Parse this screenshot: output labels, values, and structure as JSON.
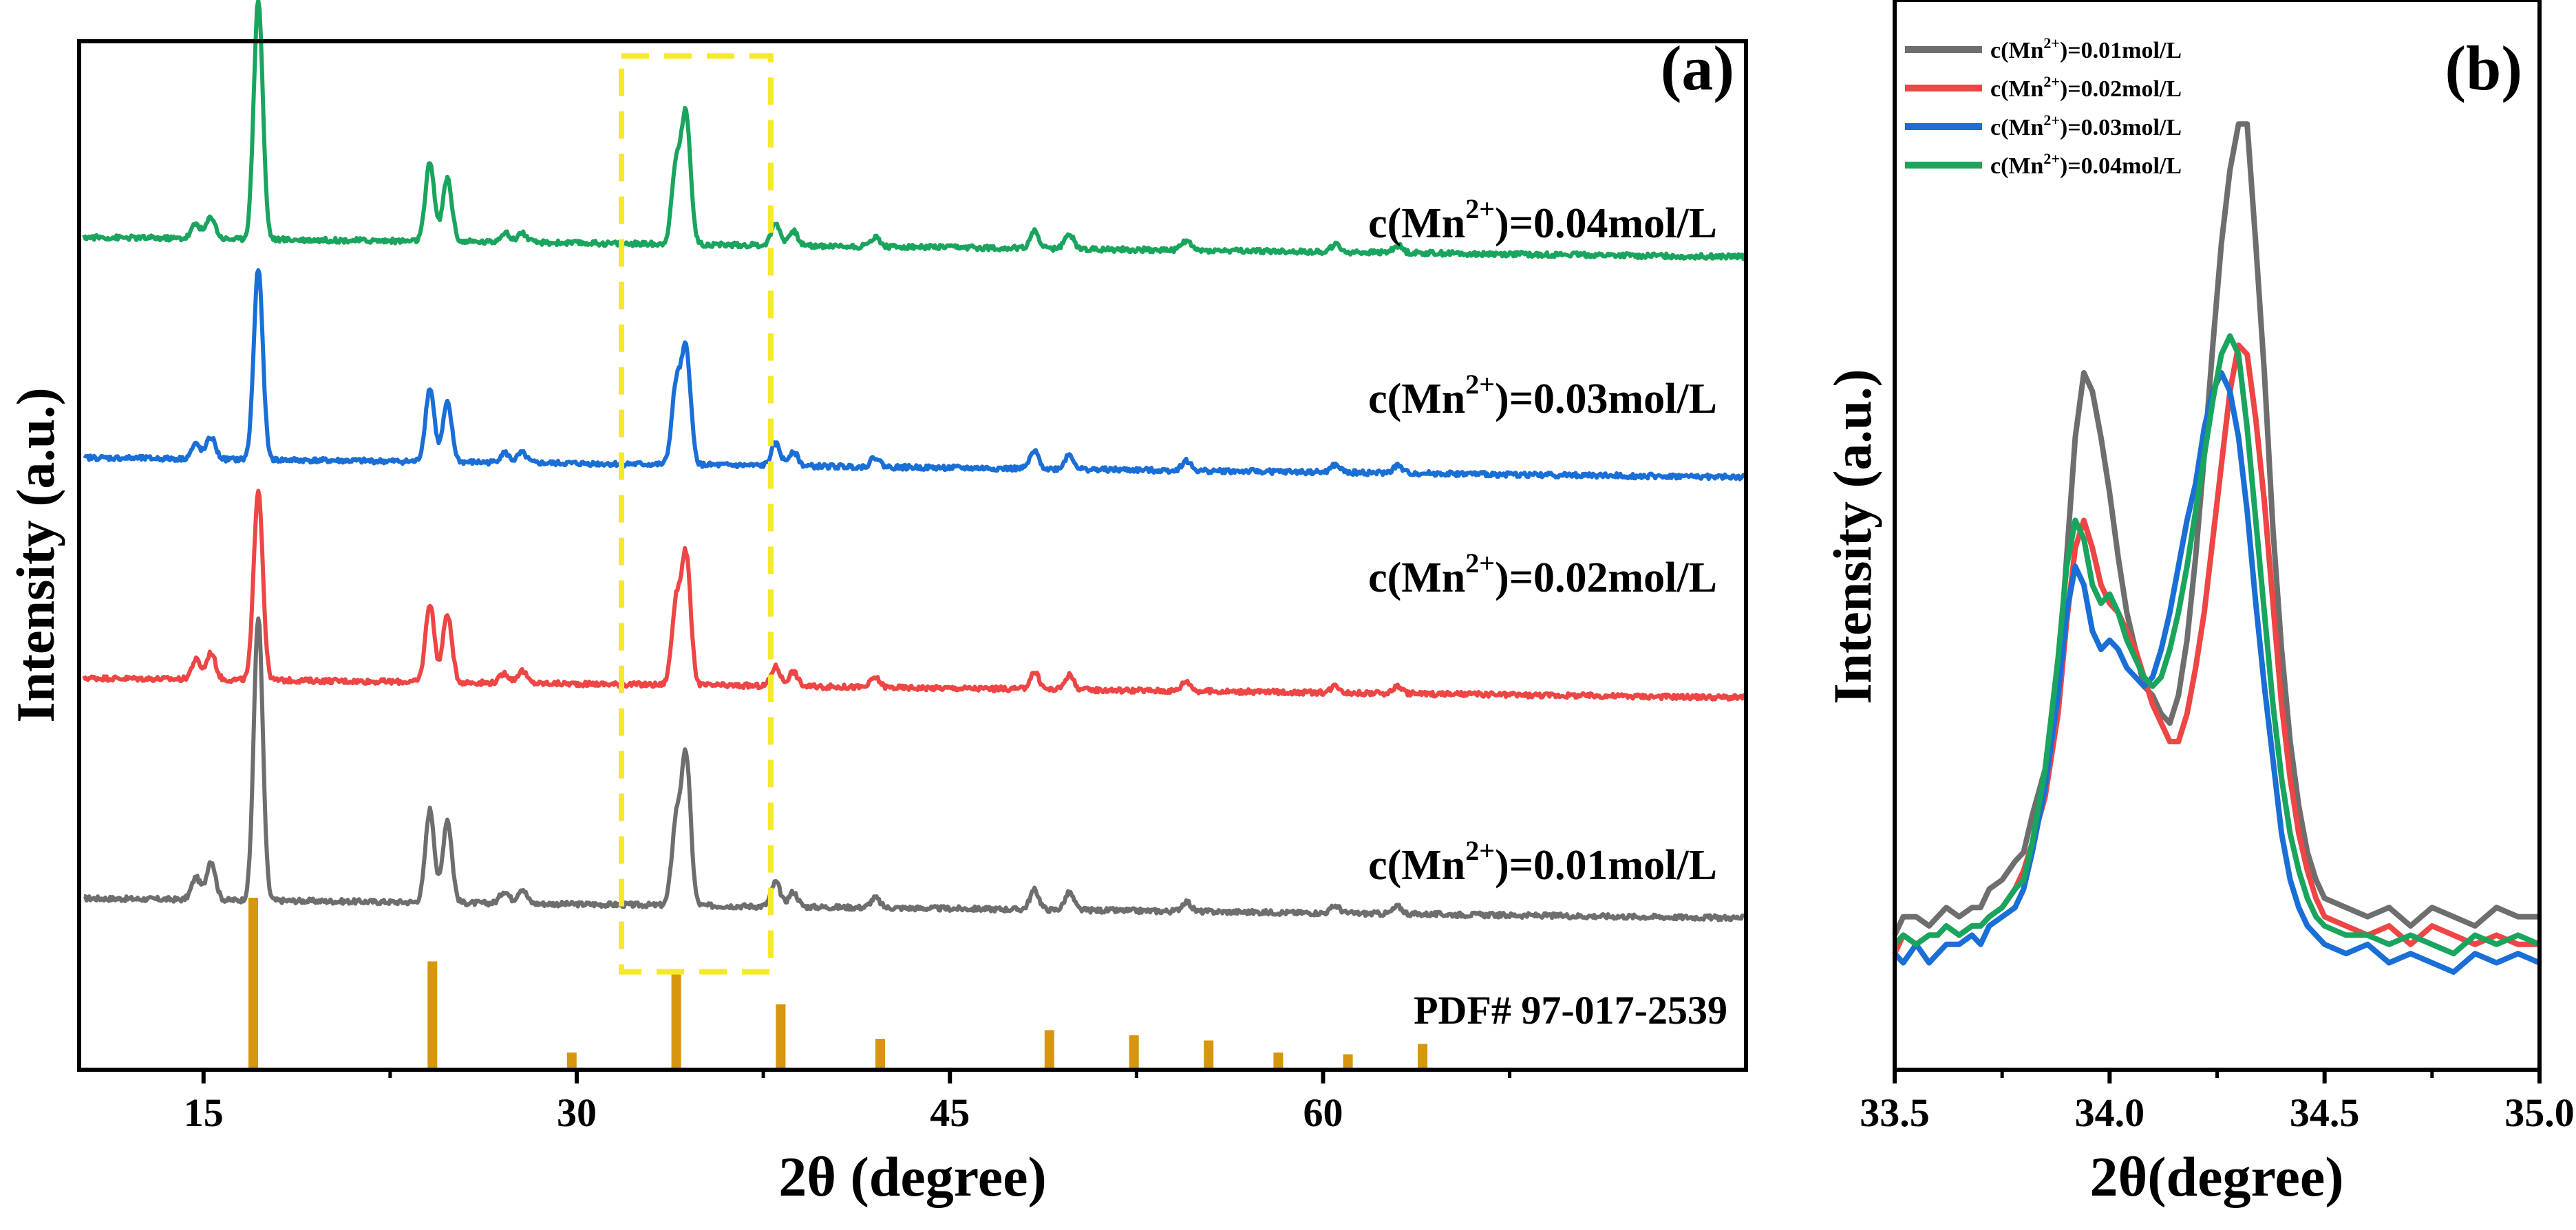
{
  "figure": {
    "panel_a_label": "(a)",
    "panel_b_label": "(b)"
  },
  "chart_data": [
    {
      "type": "line",
      "panel": "(a)",
      "xlabel": "2θ (degree)",
      "ylabel": "Intensity (a.u.)",
      "xlim": [
        10,
        77
      ],
      "ylim": [
        0,
        21
      ],
      "xticks": [
        15,
        30,
        45,
        60
      ],
      "x_tick_labels": [
        "15",
        "30",
        "45",
        "60"
      ],
      "minor_xticks": [
        22.5,
        37.5,
        52.5,
        67.5
      ],
      "colors": {
        "0.01": "#6e6e6e",
        "0.02": "#ee4545",
        "0.03": "#1a6fd6",
        "0.04": "#1aa55e",
        "pdf": "#d6960f",
        "highlight_box": "#f5e92a"
      },
      "baseline": {
        "start": 10,
        "slope": 0.006,
        "noise_amplitude": 0.1
      },
      "peak_width": 0.18,
      "series": [
        {
          "name": "c(Mn²⁺)=0.01mol/L",
          "color": "#6e6e6e",
          "offset": 3.5,
          "peaks": [
            [
              14.7,
              0.45
            ],
            [
              15.3,
              0.8
            ],
            [
              17.2,
              5.8
            ],
            [
              24.1,
              1.9
            ],
            [
              24.8,
              1.7
            ],
            [
              27.1,
              0.25
            ],
            [
              27.8,
              0.3
            ],
            [
              34.0,
              1.7
            ],
            [
              34.4,
              3.0
            ],
            [
              38.0,
              0.5
            ],
            [
              38.7,
              0.3
            ],
            [
              42.0,
              0.2
            ],
            [
              48.4,
              0.4
            ],
            [
              49.8,
              0.35
            ],
            [
              54.5,
              0.2
            ],
            [
              60.5,
              0.15
            ],
            [
              63.0,
              0.15
            ]
          ]
        },
        {
          "name": "c(Mn²⁺)=0.02mol/L",
          "color": "#ee4545",
          "offset": 8.0,
          "peaks": [
            [
              14.7,
              0.4
            ],
            [
              15.3,
              0.55
            ],
            [
              17.2,
              3.9
            ],
            [
              24.1,
              1.6
            ],
            [
              24.8,
              1.4
            ],
            [
              27.1,
              0.2
            ],
            [
              27.8,
              0.25
            ],
            [
              34.0,
              1.65
            ],
            [
              34.4,
              2.6
            ],
            [
              38.0,
              0.4
            ],
            [
              38.7,
              0.3
            ],
            [
              42.0,
              0.2
            ],
            [
              48.4,
              0.35
            ],
            [
              49.8,
              0.3
            ],
            [
              54.5,
              0.2
            ],
            [
              60.5,
              0.15
            ],
            [
              63.0,
              0.15
            ]
          ]
        },
        {
          "name": "c(Mn²⁺)=0.03mol/L",
          "color": "#1a6fd6",
          "offset": 12.5,
          "peaks": [
            [
              14.7,
              0.3
            ],
            [
              15.3,
              0.45
            ],
            [
              17.2,
              3.9
            ],
            [
              24.1,
              1.5
            ],
            [
              24.8,
              1.2
            ],
            [
              27.1,
              0.2
            ],
            [
              27.8,
              0.2
            ],
            [
              34.0,
              1.6
            ],
            [
              34.4,
              2.3
            ],
            [
              38.0,
              0.45
            ],
            [
              38.7,
              0.3
            ],
            [
              42.0,
              0.2
            ],
            [
              48.4,
              0.35
            ],
            [
              49.8,
              0.3
            ],
            [
              54.5,
              0.2
            ],
            [
              60.5,
              0.15
            ],
            [
              63.0,
              0.15
            ]
          ]
        },
        {
          "name": "c(Mn²⁺)=0.04mol/L",
          "color": "#1aa55e",
          "offset": 17.0,
          "peaks": [
            [
              14.7,
              0.3
            ],
            [
              15.3,
              0.45
            ],
            [
              17.2,
              4.9
            ],
            [
              24.1,
              1.6
            ],
            [
              24.8,
              1.3
            ],
            [
              27.1,
              0.2
            ],
            [
              27.8,
              0.2
            ],
            [
              34.0,
              1.6
            ],
            [
              34.4,
              2.6
            ],
            [
              38.0,
              0.45
            ],
            [
              38.7,
              0.3
            ],
            [
              42.0,
              0.2
            ],
            [
              48.4,
              0.35
            ],
            [
              49.8,
              0.3
            ],
            [
              54.5,
              0.2
            ],
            [
              60.5,
              0.15
            ],
            [
              63.0,
              0.15
            ]
          ]
        }
      ],
      "labels": [
        {
          "prefix": "c(Mn",
          "sup": "2+",
          "suffix": ")=0.01mol/L"
        },
        {
          "prefix": "c(Mn",
          "sup": "2+",
          "suffix": ")=0.02mol/L"
        },
        {
          "prefix": "c(Mn",
          "sup": "2+",
          "suffix": ")=0.03mol/L"
        },
        {
          "prefix": "c(Mn",
          "sup": "2+",
          "suffix": ")=0.04mol/L"
        }
      ],
      "reference": {
        "name": "PDF# 97-017-2539",
        "x": [
          17.0,
          24.2,
          29.8,
          34.0,
          38.2,
          42.2,
          49.0,
          52.4,
          55.4,
          58.2,
          61.0,
          64.0
        ],
        "heights": [
          100,
          63,
          10,
          57,
          38,
          18,
          23,
          20,
          17,
          10,
          9,
          15
        ]
      },
      "highlight_box": {
        "x_range": [
          31.8,
          37.8
        ],
        "y_range": [
          2.0,
          20.7
        ]
      }
    },
    {
      "type": "line",
      "panel": "(b)",
      "xlabel": "2θ(degree)",
      "ylabel": "Intensity (a.u.)",
      "xlim": [
        33.5,
        35.0
      ],
      "ylim": [
        0,
        100
      ],
      "xticks": [
        33.5,
        34.0,
        34.5,
        35.0
      ],
      "x_tick_labels": [
        "33.5",
        "34.0",
        "34.5",
        "35.0"
      ],
      "minor_xticks": [
        33.75,
        34.25,
        34.75
      ],
      "legend_position": "top-left",
      "series": [
        {
          "name": "c(Mn²⁺)=0.01mol/L",
          "color": "#6e6e6e",
          "x": [
            33.5,
            33.52,
            33.55,
            33.58,
            33.6,
            33.62,
            33.65,
            33.68,
            33.7,
            33.72,
            33.75,
            33.78,
            33.8,
            33.82,
            33.85,
            33.88,
            33.9,
            33.92,
            33.94,
            33.96,
            33.98,
            34.0,
            34.02,
            34.04,
            34.06,
            34.08,
            34.1,
            34.12,
            34.14,
            34.16,
            34.18,
            34.2,
            34.22,
            34.24,
            34.26,
            34.28,
            34.3,
            34.32,
            34.34,
            34.36,
            34.38,
            34.4,
            34.42,
            34.44,
            34.46,
            34.48,
            34.5,
            34.55,
            34.6,
            34.65,
            34.7,
            34.75,
            34.8,
            34.85,
            34.9,
            34.95,
            35.0
          ],
          "y": [
            9,
            11,
            11,
            10,
            11,
            12,
            11,
            12,
            12,
            14,
            15,
            17,
            18,
            22,
            27,
            37,
            50,
            63,
            70,
            68,
            63,
            57,
            50,
            44,
            40,
            36,
            35,
            33,
            32,
            35,
            41,
            50,
            61,
            73,
            84,
            92,
            97,
            97,
            84,
            70,
            53,
            40,
            30,
            23,
            18,
            15,
            13,
            12,
            11,
            12,
            10,
            12,
            11,
            10,
            12,
            11,
            11
          ]
        },
        {
          "name": "c(Mn²⁺)=0.02mol/L",
          "color": "#ee4545",
          "x": [
            33.5,
            33.52,
            33.55,
            33.58,
            33.6,
            33.62,
            33.65,
            33.68,
            33.7,
            33.72,
            33.75,
            33.78,
            33.8,
            33.82,
            33.85,
            33.88,
            33.9,
            33.92,
            33.94,
            33.96,
            33.98,
            34.0,
            34.02,
            34.04,
            34.06,
            34.08,
            34.1,
            34.12,
            34.14,
            34.16,
            34.18,
            34.2,
            34.22,
            34.24,
            34.26,
            34.28,
            34.3,
            34.32,
            34.34,
            34.36,
            34.38,
            34.4,
            34.42,
            34.44,
            34.46,
            34.48,
            34.5,
            34.55,
            34.6,
            34.65,
            34.7,
            34.75,
            34.8,
            34.85,
            34.9,
            34.95,
            35.0
          ],
          "y": [
            7,
            9,
            8,
            9,
            9,
            10,
            9,
            10,
            10,
            11,
            12,
            14,
            16,
            19,
            24,
            33,
            43,
            51,
            54,
            51,
            47,
            45,
            44,
            42,
            40,
            37,
            34,
            32,
            30,
            30,
            33,
            38,
            44,
            52,
            60,
            68,
            73,
            72,
            65,
            56,
            45,
            34,
            26,
            20,
            16,
            13,
            11,
            10,
            9,
            10,
            8,
            10,
            9,
            8,
            9,
            8,
            8
          ]
        },
        {
          "name": "c(Mn²⁺)=0.03mol/L",
          "color": "#1a6fd6",
          "x": [
            33.5,
            33.52,
            33.55,
            33.58,
            33.6,
            33.62,
            33.65,
            33.68,
            33.7,
            33.72,
            33.75,
            33.78,
            33.8,
            33.82,
            33.85,
            33.88,
            33.9,
            33.92,
            33.94,
            33.96,
            33.98,
            34.0,
            34.02,
            34.04,
            34.06,
            34.08,
            34.1,
            34.12,
            34.14,
            34.16,
            34.18,
            34.2,
            34.22,
            34.24,
            34.26,
            34.28,
            34.3,
            34.32,
            34.34,
            34.36,
            34.38,
            34.4,
            34.42,
            34.44,
            34.46,
            34.48,
            34.5,
            34.55,
            34.6,
            34.65,
            34.7,
            34.75,
            34.8,
            34.85,
            34.9,
            34.95,
            35.0
          ],
          "y": [
            7,
            6,
            8,
            6,
            7,
            8,
            8,
            9,
            8,
            10,
            11,
            12,
            14,
            18,
            25,
            35,
            44,
            49,
            47,
            42,
            40,
            41,
            40,
            38,
            37,
            36,
            37,
            40,
            44,
            49,
            54,
            58,
            64,
            68,
            70,
            68,
            63,
            55,
            45,
            36,
            28,
            20,
            15,
            12,
            10,
            9,
            8,
            7,
            8,
            6,
            7,
            6,
            5,
            7,
            6,
            7,
            6
          ]
        },
        {
          "name": "c(Mn²⁺)=0.04mol/L",
          "color": "#1aa55e",
          "x": [
            33.5,
            33.52,
            33.55,
            33.58,
            33.6,
            33.62,
            33.65,
            33.68,
            33.7,
            33.72,
            33.75,
            33.78,
            33.8,
            33.82,
            33.85,
            33.88,
            33.9,
            33.92,
            33.94,
            33.96,
            33.98,
            34.0,
            34.02,
            34.04,
            34.06,
            34.08,
            34.1,
            34.12,
            34.14,
            34.16,
            34.18,
            34.2,
            34.22,
            34.24,
            34.26,
            34.28,
            34.3,
            34.32,
            34.34,
            34.36,
            34.38,
            34.4,
            34.42,
            34.44,
            34.46,
            34.48,
            34.5,
            34.55,
            34.6,
            34.65,
            34.7,
            34.75,
            34.8,
            34.85,
            34.9,
            34.95,
            35.0
          ],
          "y": [
            8,
            9,
            8,
            9,
            9,
            10,
            9,
            10,
            10,
            11,
            12,
            14,
            15,
            19,
            27,
            39,
            49,
            54,
            52,
            47,
            45,
            46,
            44,
            41,
            39,
            37,
            36,
            37,
            40,
            44,
            49,
            55,
            61,
            67,
            72,
            74,
            72,
            64,
            54,
            44,
            34,
            26,
            20,
            16,
            13,
            11,
            10,
            9,
            9,
            8,
            9,
            8,
            7,
            9,
            8,
            9,
            8
          ]
        }
      ],
      "legend": [
        {
          "prefix": "c(Mn",
          "sup": "2+",
          "suffix": ")=0.01mol/L"
        },
        {
          "prefix": "c(Mn",
          "sup": "2+",
          "suffix": ")=0.02mol/L"
        },
        {
          "prefix": "c(Mn",
          "sup": "2+",
          "suffix": ")=0.03mol/L"
        },
        {
          "prefix": "c(Mn",
          "sup": "2+",
          "suffix": ")=0.04mol/L"
        }
      ]
    }
  ]
}
